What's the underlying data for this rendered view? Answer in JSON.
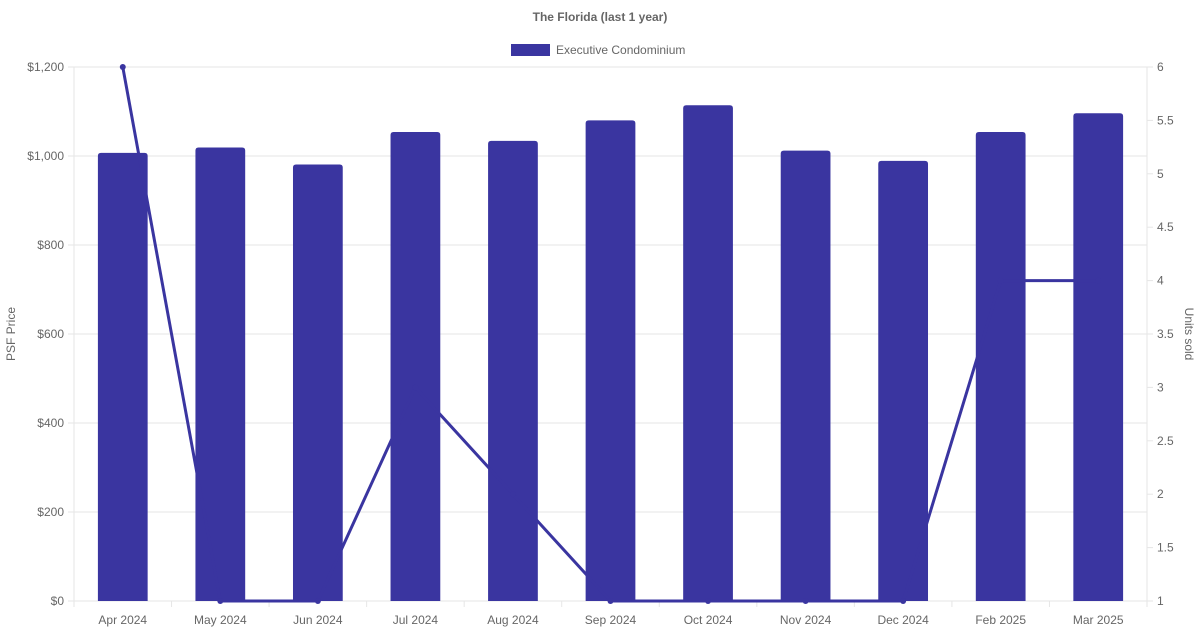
{
  "chart_data": {
    "type": "bar",
    "title": "The Florida (last 1 year)",
    "categories": [
      "Apr 2024",
      "May 2024",
      "Jun 2024",
      "Jul 2024",
      "Aug 2024",
      "Sep 2024",
      "Oct 2024",
      "Nov 2024",
      "Dec 2024",
      "Feb 2025",
      "Mar 2025"
    ],
    "series": [
      {
        "name": "Executive Condominium",
        "type": "bar",
        "axis": "left",
        "values": [
          1007,
          1019,
          981,
          1054,
          1034,
          1080,
          1114,
          1012,
          989,
          1054,
          1096
        ]
      },
      {
        "type": "line",
        "axis": "right",
        "values": [
          6,
          1,
          1,
          3,
          2,
          1,
          1,
          1,
          1,
          4,
          4
        ]
      }
    ],
    "ylabel": "PSF Price",
    "y2label": "Units sold",
    "ylim": [
      0,
      1200
    ],
    "y2lim": [
      1,
      6
    ],
    "yticks": [
      "$0",
      "$200",
      "$400",
      "$600",
      "$800",
      "$1,000",
      "$1,200"
    ],
    "y2ticks": [
      "1",
      "1.5",
      "2",
      "2.5",
      "3",
      "3.5",
      "4",
      "4.5",
      "5",
      "5.5",
      "6"
    ],
    "legend_position": "top",
    "grid": true,
    "colors": {
      "bar": "#3a35a0",
      "line": "#3a35a0",
      "grid": "#e6e6e6",
      "text": "#666666"
    }
  }
}
